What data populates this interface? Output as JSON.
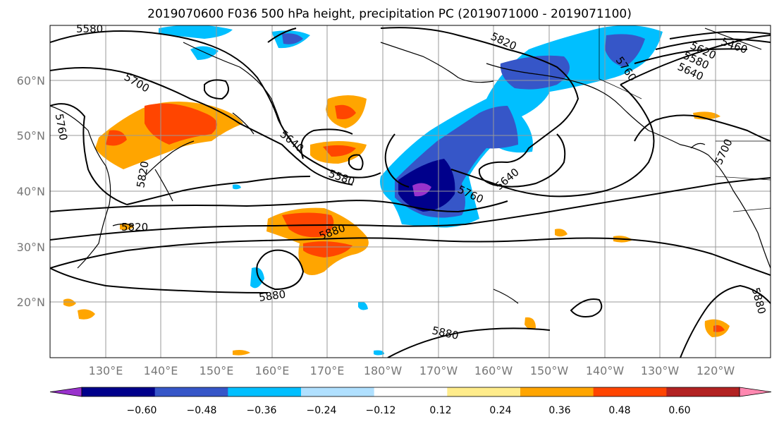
{
  "title": "2019070600 F036 500 hPa height, precipitation PC (2019071000 - 2019071100)",
  "map": {
    "lat_labels": [
      "60°N",
      "50°N",
      "40°N",
      "30°N",
      "20°N"
    ],
    "lon_labels": [
      "130°E",
      "140°E",
      "150°E",
      "160°E",
      "170°E",
      "180°W",
      "170°W",
      "160°W",
      "150°W",
      "140°W",
      "130°W",
      "120°W"
    ],
    "contour_labels": [
      "5580",
      "5700",
      "5760",
      "5820",
      "5640",
      "5580",
      "5820",
      "5880",
      "5880",
      "5760",
      "5640",
      "5820",
      "5760",
      "5640",
      "5580",
      "5620",
      "5460",
      "5880",
      "5880",
      "5700"
    ]
  },
  "colorbar": {
    "colors": [
      "#9932cc",
      "#00008b",
      "#3656c8",
      "#00bfff",
      "#b0e0ff",
      "#ffffff",
      "#ffec8b",
      "#ffa500",
      "#ff4500",
      "#b22222",
      "#ff88b0"
    ],
    "tick_labels": [
      "−0.60",
      "−0.48",
      "−0.36",
      "−0.24",
      "−0.12",
      "0.12",
      "0.24",
      "0.36",
      "0.48",
      "0.60"
    ]
  }
}
